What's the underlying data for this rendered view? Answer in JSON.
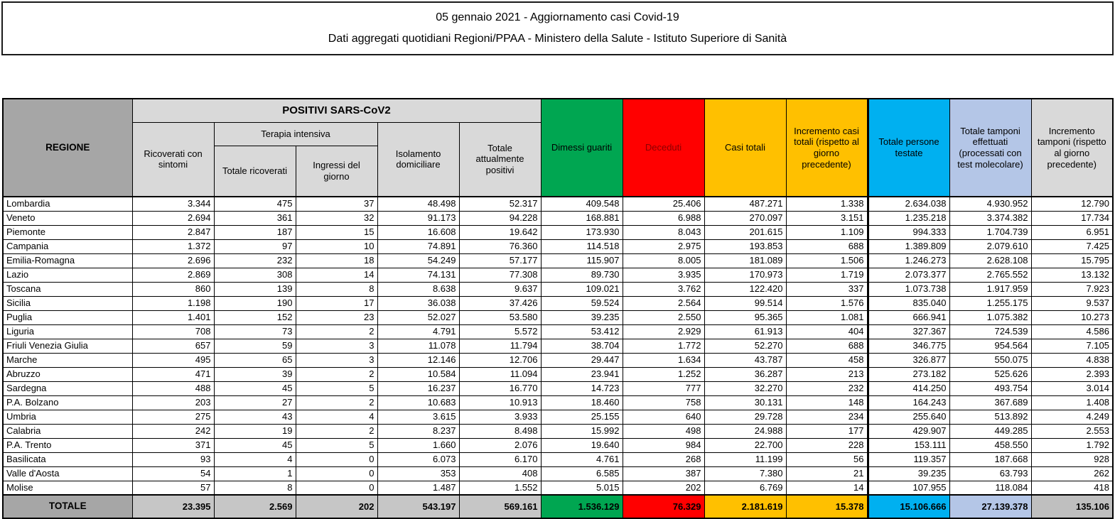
{
  "title": {
    "line1": "05 gennaio 2021 - Aggiornamento casi Covid-19",
    "line2": "Dati aggregati quotidiani Regioni/PPAA - Ministero della Salute - Istituto Superiore di Sanità"
  },
  "colors": {
    "green": "#00A651",
    "red": "#FF0000",
    "deceduti_text": "#8B0000",
    "yellow": "#FFC000",
    "blue": "#00B0F0",
    "periwinkle": "#B4C6E7",
    "header_gray": "#D9D9D9",
    "dark_gray": "#A6A6A6",
    "total_gray": "#C6C6C6",
    "total_light_gray": "#BFBFBF"
  },
  "table": {
    "header": {
      "regione": "REGIONE",
      "positivi_group": "POSITIVI SARS-CoV2",
      "ricoverati": "Ricoverati con sintomi",
      "terapia_group": "Terapia intensiva",
      "totale_ricoverati": "Totale ricoverati",
      "ingressi": "Ingressi del giorno",
      "isolamento": "Isolamento domiciliare",
      "totale_positivi": "Totale attualmente positivi",
      "dimessi": "Dimessi guariti",
      "deceduti": "Deceduti",
      "casi_totali": "Casi totali",
      "incremento_casi": "Incremento casi totali (rispetto al giorno precedente)",
      "persone_testate": "Totale persone testate",
      "tamponi": "Totale tamponi effettuati (processati con test molecolare)",
      "incremento_tamponi": "Incremento tamponi (rispetto al giorno precedente)"
    },
    "rows": [
      {
        "region": "Lombardia",
        "values": [
          "3.344",
          "475",
          "37",
          "48.498",
          "52.317",
          "409.548",
          "25.406",
          "487.271",
          "1.338",
          "2.634.038",
          "4.930.952",
          "12.790"
        ]
      },
      {
        "region": "Veneto",
        "values": [
          "2.694",
          "361",
          "32",
          "91.173",
          "94.228",
          "168.881",
          "6.988",
          "270.097",
          "3.151",
          "1.235.218",
          "3.374.382",
          "17.734"
        ]
      },
      {
        "region": "Piemonte",
        "values": [
          "2.847",
          "187",
          "15",
          "16.608",
          "19.642",
          "173.930",
          "8.043",
          "201.615",
          "1.109",
          "994.333",
          "1.704.739",
          "6.951"
        ]
      },
      {
        "region": "Campania",
        "values": [
          "1.372",
          "97",
          "10",
          "74.891",
          "76.360",
          "114.518",
          "2.975",
          "193.853",
          "688",
          "1.389.809",
          "2.079.610",
          "7.425"
        ]
      },
      {
        "region": "Emilia-Romagna",
        "values": [
          "2.696",
          "232",
          "18",
          "54.249",
          "57.177",
          "115.907",
          "8.005",
          "181.089",
          "1.506",
          "1.246.273",
          "2.628.108",
          "15.795"
        ]
      },
      {
        "region": "Lazio",
        "values": [
          "2.869",
          "308",
          "14",
          "74.131",
          "77.308",
          "89.730",
          "3.935",
          "170.973",
          "1.719",
          "2.073.377",
          "2.765.552",
          "13.132"
        ]
      },
      {
        "region": "Toscana",
        "values": [
          "860",
          "139",
          "8",
          "8.638",
          "9.637",
          "109.021",
          "3.762",
          "122.420",
          "337",
          "1.073.738",
          "1.917.959",
          "7.923"
        ]
      },
      {
        "region": "Sicilia",
        "values": [
          "1.198",
          "190",
          "17",
          "36.038",
          "37.426",
          "59.524",
          "2.564",
          "99.514",
          "1.576",
          "835.040",
          "1.255.175",
          "9.537"
        ]
      },
      {
        "region": "Puglia",
        "values": [
          "1.401",
          "152",
          "23",
          "52.027",
          "53.580",
          "39.235",
          "2.550",
          "95.365",
          "1.081",
          "666.941",
          "1.075.382",
          "10.273"
        ]
      },
      {
        "region": "Liguria",
        "values": [
          "708",
          "73",
          "2",
          "4.791",
          "5.572",
          "53.412",
          "2.929",
          "61.913",
          "404",
          "327.367",
          "724.539",
          "4.586"
        ]
      },
      {
        "region": "Friuli Venezia Giulia",
        "values": [
          "657",
          "59",
          "3",
          "11.078",
          "11.794",
          "38.704",
          "1.772",
          "52.270",
          "688",
          "346.775",
          "954.564",
          "7.105"
        ]
      },
      {
        "region": "Marche",
        "values": [
          "495",
          "65",
          "3",
          "12.146",
          "12.706",
          "29.447",
          "1.634",
          "43.787",
          "458",
          "326.877",
          "550.075",
          "4.838"
        ]
      },
      {
        "region": "Abruzzo",
        "values": [
          "471",
          "39",
          "2",
          "10.584",
          "11.094",
          "23.941",
          "1.252",
          "36.287",
          "213",
          "273.182",
          "525.626",
          "2.393"
        ]
      },
      {
        "region": "Sardegna",
        "values": [
          "488",
          "45",
          "5",
          "16.237",
          "16.770",
          "14.723",
          "777",
          "32.270",
          "232",
          "414.250",
          "493.754",
          "3.014"
        ]
      },
      {
        "region": "P.A. Bolzano",
        "values": [
          "203",
          "27",
          "2",
          "10.683",
          "10.913",
          "18.460",
          "758",
          "30.131",
          "148",
          "164.243",
          "367.689",
          "1.408"
        ]
      },
      {
        "region": "Umbria",
        "values": [
          "275",
          "43",
          "4",
          "3.615",
          "3.933",
          "25.155",
          "640",
          "29.728",
          "234",
          "255.640",
          "513.892",
          "4.249"
        ]
      },
      {
        "region": "Calabria",
        "values": [
          "242",
          "19",
          "2",
          "8.237",
          "8.498",
          "15.992",
          "498",
          "24.988",
          "177",
          "429.907",
          "449.285",
          "2.553"
        ]
      },
      {
        "region": "P.A. Trento",
        "values": [
          "371",
          "45",
          "5",
          "1.660",
          "2.076",
          "19.640",
          "984",
          "22.700",
          "228",
          "153.111",
          "458.550",
          "1.792"
        ]
      },
      {
        "region": "Basilicata",
        "values": [
          "93",
          "4",
          "0",
          "6.073",
          "6.170",
          "4.761",
          "268",
          "11.199",
          "56",
          "119.357",
          "187.668",
          "928"
        ]
      },
      {
        "region": "Valle d'Aosta",
        "values": [
          "54",
          "1",
          "0",
          "353",
          "408",
          "6.585",
          "387",
          "7.380",
          "21",
          "39.235",
          "63.793",
          "262"
        ]
      },
      {
        "region": "Molise",
        "values": [
          "57",
          "8",
          "0",
          "1.487",
          "1.552",
          "5.015",
          "202",
          "6.769",
          "14",
          "107.955",
          "118.084",
          "418"
        ]
      }
    ],
    "total": {
      "label": "TOTALE",
      "values": [
        "23.395",
        "2.569",
        "202",
        "543.197",
        "569.161",
        "1.536.129",
        "76.329",
        "2.181.619",
        "15.378",
        "15.106.666",
        "27.139.378",
        "135.106"
      ]
    }
  }
}
